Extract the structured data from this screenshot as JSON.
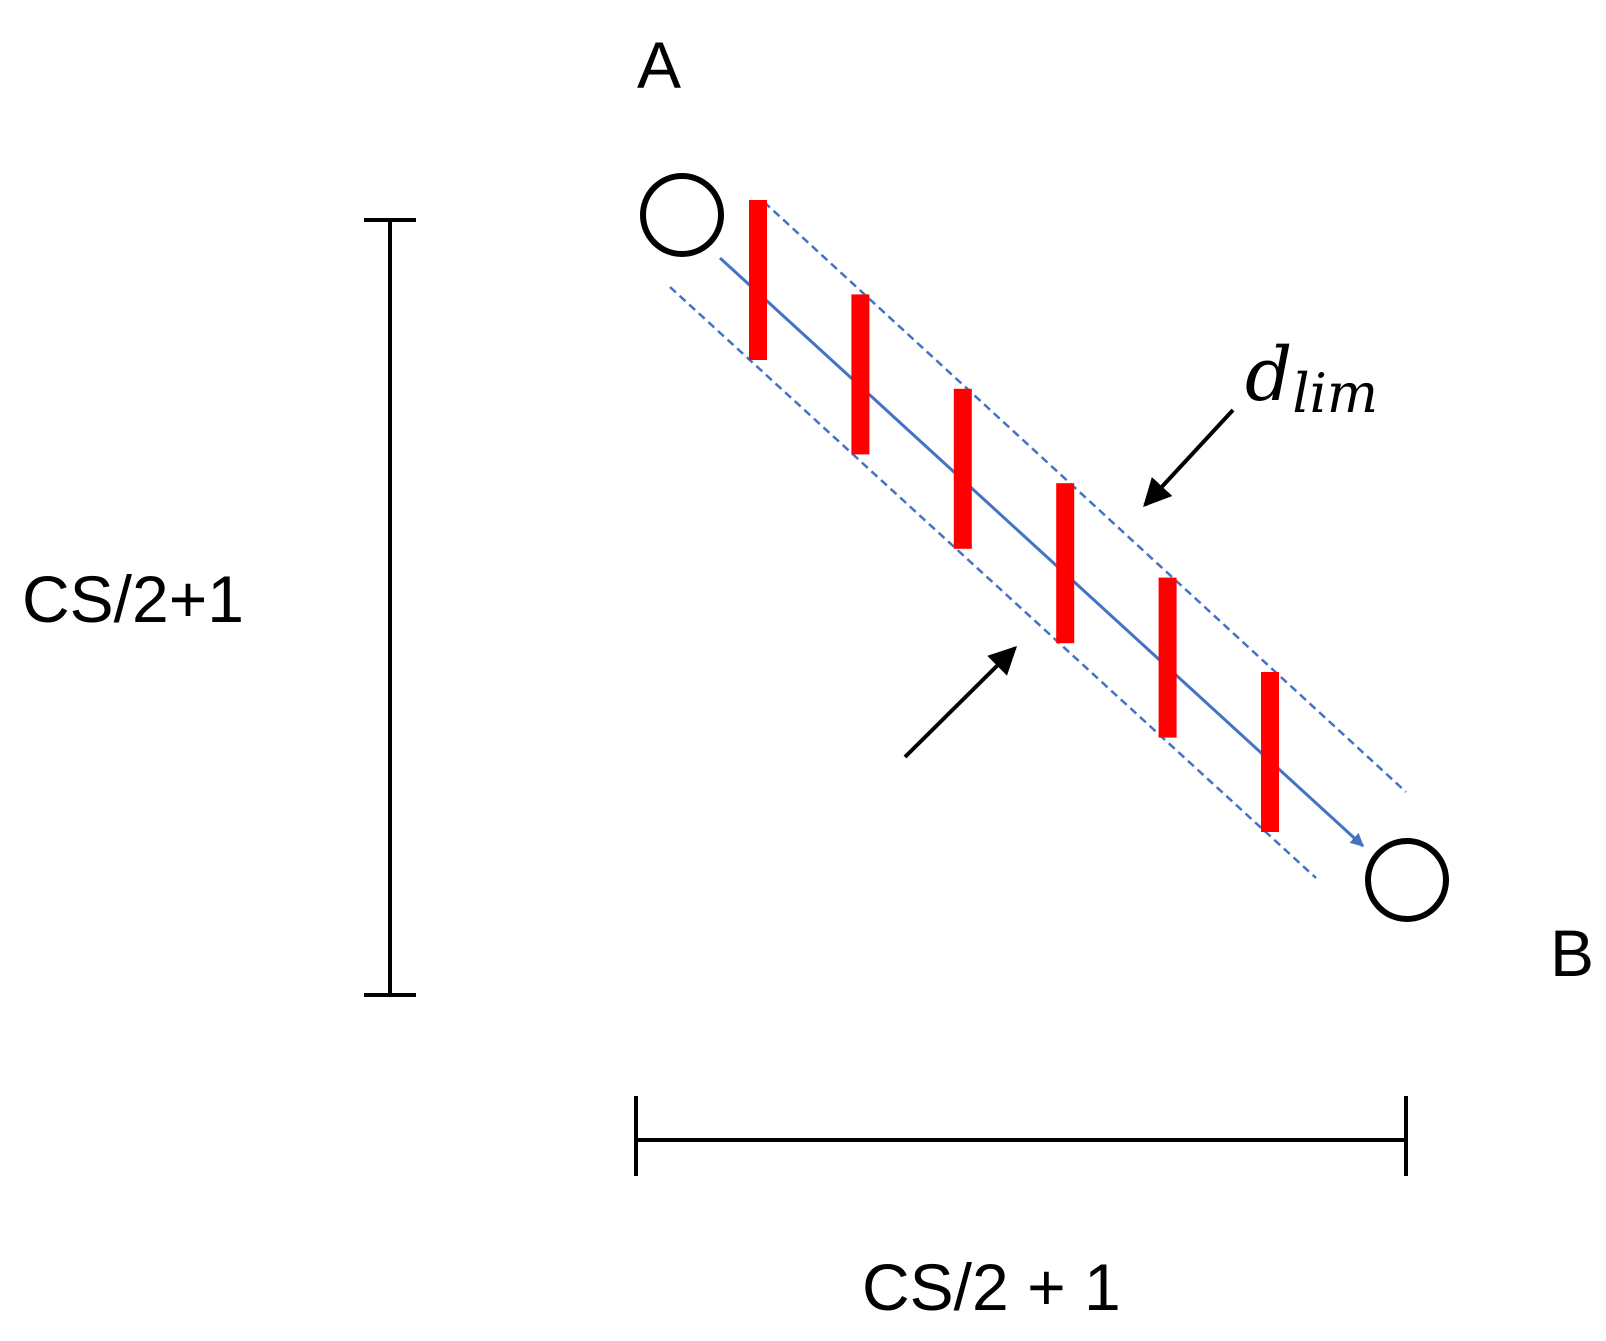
{
  "labels": {
    "point_a": "A",
    "point_b": "B",
    "vertical_dimension": "CS/2+1",
    "horizontal_dimension": "CS/2 + 1",
    "width_symbol": "d",
    "width_subscript": "lim"
  },
  "colors": {
    "line": "#000000",
    "path": "#4472C4",
    "marks": "#FF0000",
    "background": "#ffffff"
  },
  "red_mark_count": 6
}
